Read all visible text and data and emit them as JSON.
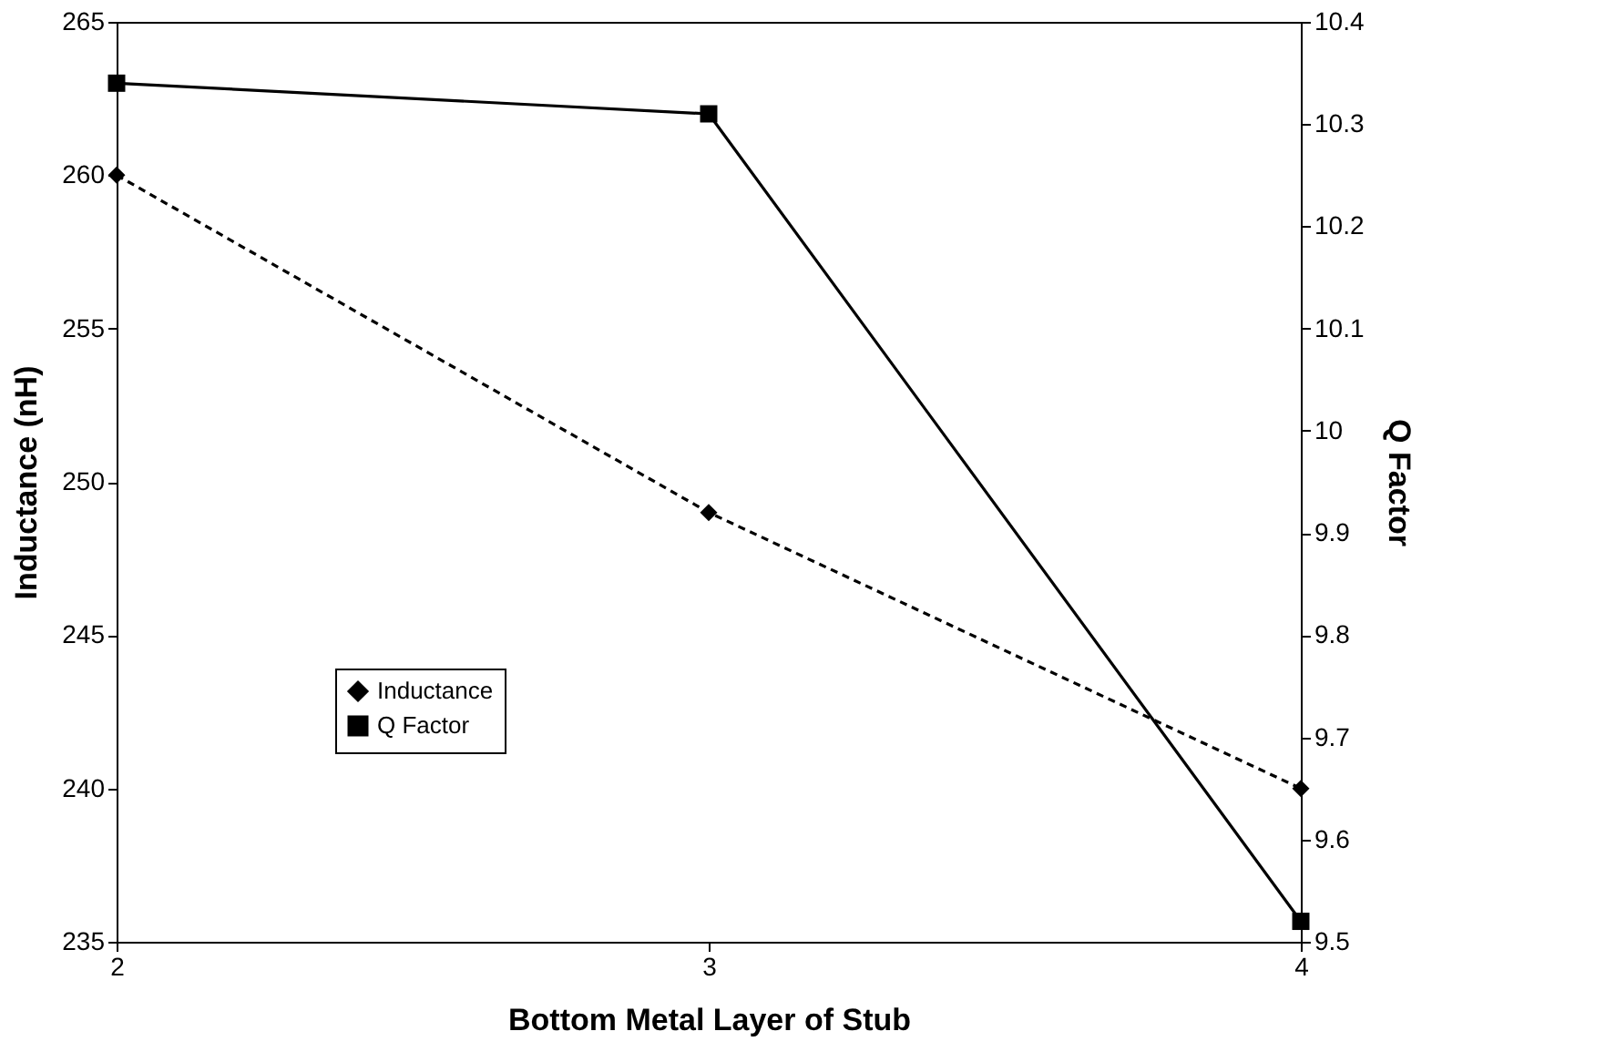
{
  "chart_data": {
    "type": "line",
    "xlabel": "Bottom Metal Layer of Stub",
    "ylabel": "Inductance (nH)",
    "y2label": "Q Factor",
    "x": [
      2,
      3,
      4
    ],
    "series": [
      {
        "name": "Inductance",
        "color": "#000000",
        "values": [
          260,
          249,
          240
        ],
        "marker": "diamond",
        "line_style": "dashed"
      },
      {
        "name": "Q Factor",
        "color": "#000000",
        "values": [
          10.34,
          10.31,
          9.52
        ],
        "marker": "square",
        "line_style": "solid",
        "axis": "y2"
      }
    ],
    "xlim": [
      2,
      4
    ],
    "xticks": [
      2,
      3,
      4
    ],
    "ylim": [
      235,
      265
    ],
    "yticks": [
      235,
      240,
      245,
      250,
      255,
      260,
      265
    ],
    "y2lim": [
      9.5,
      10.4
    ],
    "y2ticks": [
      9.5,
      9.6,
      9.7,
      9.8,
      9.9,
      10,
      10.1,
      10.2,
      10.3,
      10.4
    ],
    "grid": false,
    "legend": "left"
  }
}
